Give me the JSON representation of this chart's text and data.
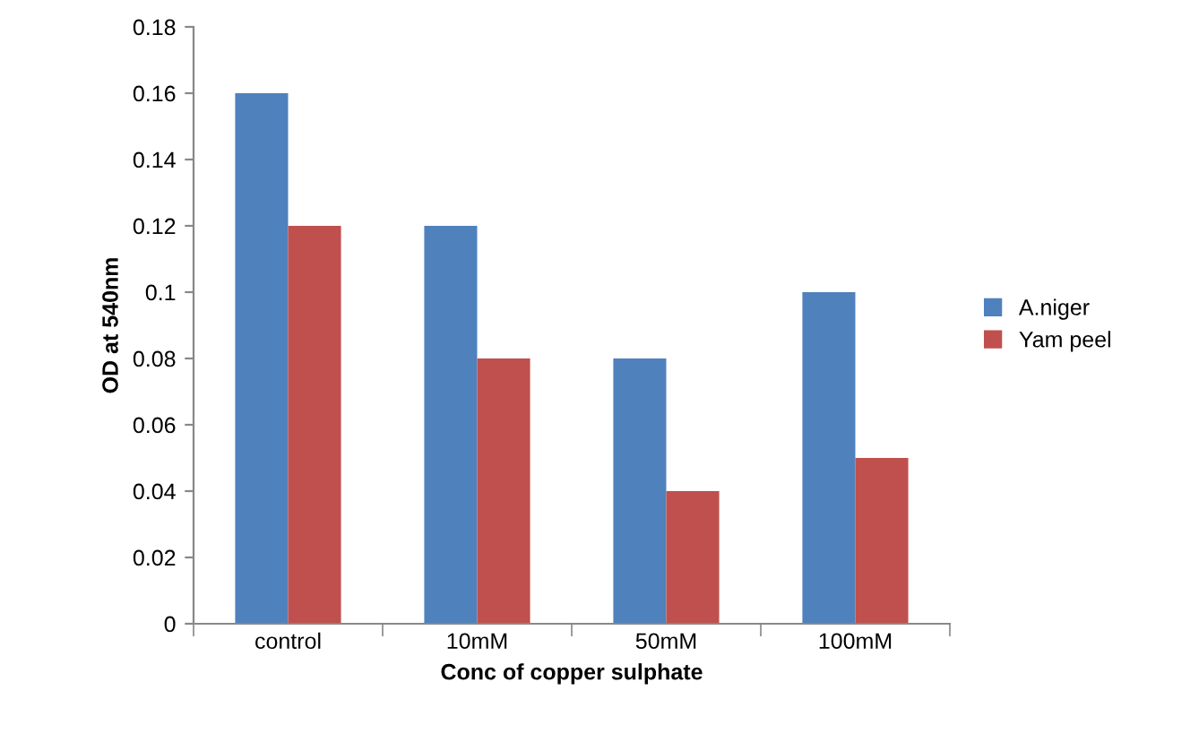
{
  "chart_data": {
    "type": "bar",
    "xlabel": "Conc of copper sulphate",
    "ylabel": "OD at 540nm",
    "categories": [
      "control",
      "10mM",
      "50mM",
      "100mM"
    ],
    "series": [
      {
        "name": "A.niger",
        "color": "#4f81bd",
        "values": [
          0.16,
          0.12,
          0.08,
          0.1
        ]
      },
      {
        "name": "Yam peel",
        "color": "#c0504d",
        "values": [
          0.12,
          0.08,
          0.04,
          0.05
        ]
      }
    ],
    "ylim": [
      0,
      0.18
    ],
    "yticks": [
      0,
      0.02,
      0.04,
      0.06,
      0.08,
      0.1,
      0.12,
      0.14,
      0.16,
      0.18
    ],
    "grid": false,
    "legend": "right"
  }
}
